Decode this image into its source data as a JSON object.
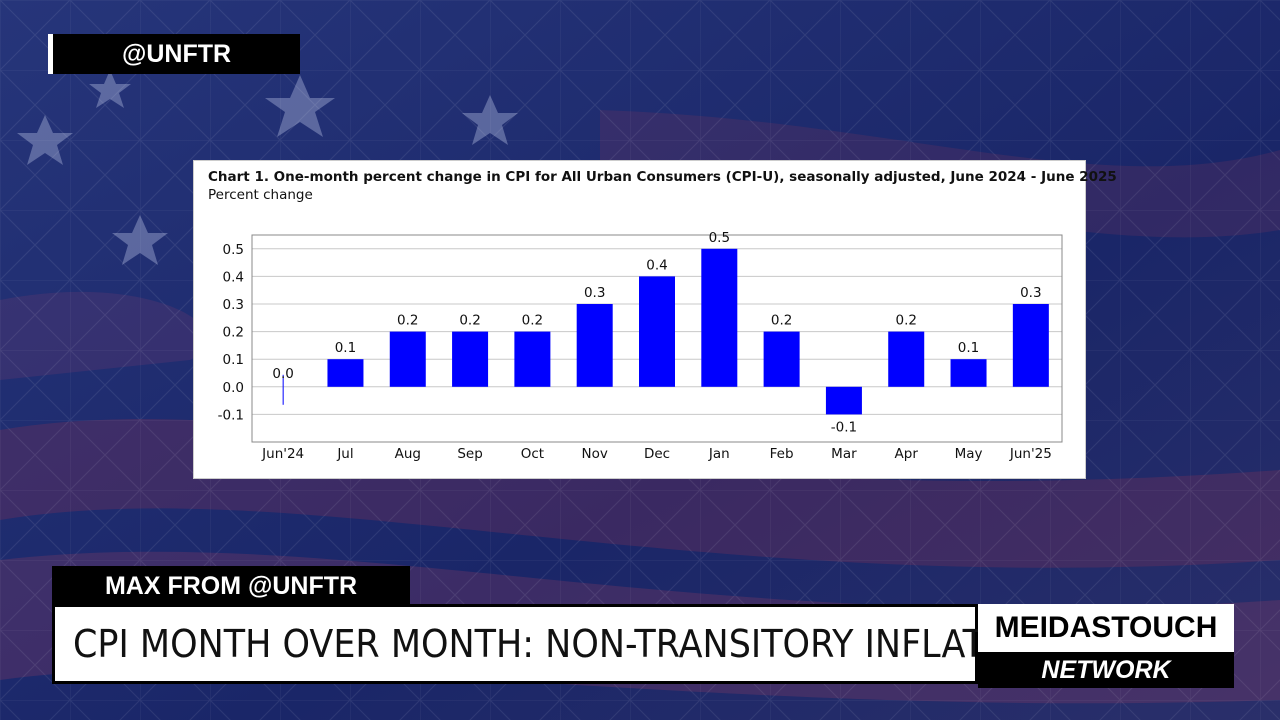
{
  "overlay": {
    "handle": "@UNFTR",
    "name_tag": "MAX FROM @UNFTR",
    "headline": "CPI MONTH OVER MONTH: NON-TRANSITORY INFLATION",
    "logo_top": "MEIDASTOUCH",
    "logo_bottom": "NETWORK"
  },
  "colors": {
    "bar": "#0000ff",
    "background": "#1c2a6e"
  },
  "chart_data": {
    "type": "bar",
    "title": "Chart 1. One-month percent change in CPI for All Urban Consumers (CPI-U), seasonally adjusted, June 2024 - June 2025",
    "ylabel": "Percent change",
    "xlabel": "",
    "categories": [
      "Jun'24",
      "Jul",
      "Aug",
      "Sep",
      "Oct",
      "Nov",
      "Dec",
      "Jan",
      "Feb",
      "Mar",
      "Apr",
      "May",
      "Jun'25"
    ],
    "values": [
      0.0,
      0.1,
      0.2,
      0.2,
      0.2,
      0.3,
      0.4,
      0.5,
      0.2,
      -0.1,
      0.2,
      0.1,
      0.3
    ],
    "value_labels": [
      "0.0",
      "0.1",
      "0.2",
      "0.2",
      "0.2",
      "0.3",
      "0.4",
      "0.5",
      "0.2",
      "-0.1",
      "0.2",
      "0.1",
      "0.3"
    ],
    "yticks": [
      -0.1,
      0.0,
      0.1,
      0.2,
      0.3,
      0.4,
      0.5
    ],
    "ytick_labels": [
      "-0.1",
      "0.0",
      "0.1",
      "0.2",
      "0.3",
      "0.4",
      "0.5"
    ],
    "ylim": [
      -0.2,
      0.55
    ],
    "grid": true
  }
}
